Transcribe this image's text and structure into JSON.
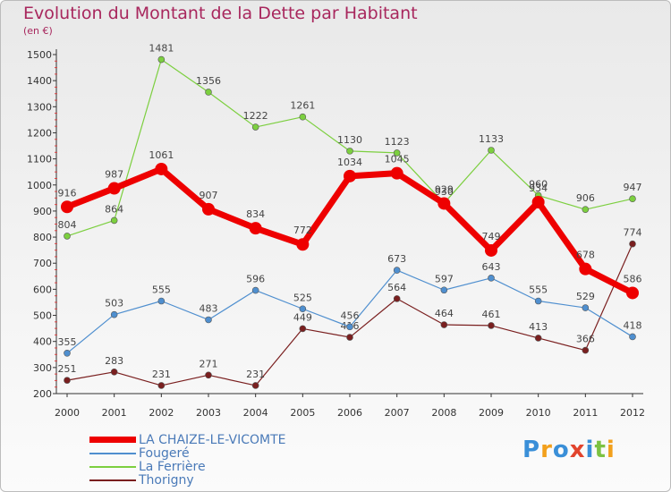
{
  "chart_data": {
    "type": "line",
    "title": "Evolution du Montant de la Dette par Habitant",
    "subtitle": "(en €)",
    "xlabel": "",
    "ylabel": "",
    "ylim": [
      200,
      1500
    ],
    "yticks": [
      "200",
      "300",
      "400",
      "500",
      "600",
      "700",
      "800",
      "900",
      "1000",
      "1100",
      "1200",
      "1300",
      "1400",
      "1500"
    ],
    "categories": [
      "2000",
      "2001",
      "2002",
      "2003",
      "2004",
      "2005",
      "2006",
      "2007",
      "2008",
      "2009",
      "2010",
      "2011",
      "2012"
    ],
    "series": [
      {
        "name": "LA CHAIZE-LE-VICOMTE",
        "color": "#ee0000",
        "bold": true,
        "values": [
          916,
          987,
          1061,
          907,
          834,
          772,
          1034,
          1045,
          929,
          749,
          934,
          678,
          586
        ]
      },
      {
        "name": "Fougeré",
        "color": "#4f8fcf",
        "bold": false,
        "values": [
          355,
          503,
          555,
          483,
          596,
          525,
          456,
          673,
          597,
          643,
          555,
          529,
          418
        ]
      },
      {
        "name": "La Ferrière",
        "color": "#7ccf3f",
        "bold": false,
        "values": [
          804,
          864,
          1481,
          1356,
          1222,
          1261,
          1130,
          1123,
          930,
          1133,
          960,
          906,
          947
        ]
      },
      {
        "name": "Thorigny",
        "color": "#7a1f1f",
        "bold": false,
        "values": [
          251,
          283,
          231,
          271,
          231,
          449,
          416,
          564,
          464,
          461,
          413,
          366,
          774
        ]
      }
    ],
    "legend_position": "bottom-left",
    "grid": false
  },
  "logo": {
    "text": "Proxiti",
    "colors": [
      "#3a8fd8",
      "#f2a01c",
      "#3a8fd8",
      "#e2442d",
      "#3a8fd8",
      "#7cc242",
      "#f2a01c"
    ]
  }
}
